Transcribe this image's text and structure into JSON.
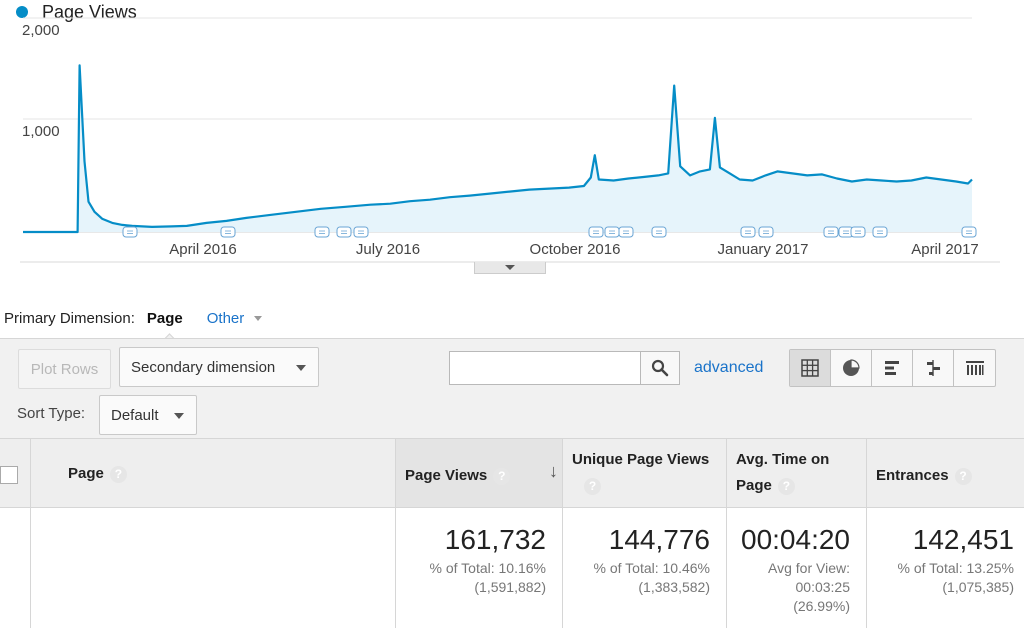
{
  "chart_data": {
    "type": "area",
    "legend": "Page Views",
    "series": [
      {
        "name": "Page Views",
        "color": "#058dc7",
        "points": [
          [
            0,
            0
          ],
          [
            55,
            0
          ],
          [
            57,
            1650
          ],
          [
            62,
            700
          ],
          [
            66,
            300
          ],
          [
            72,
            200
          ],
          [
            80,
            130
          ],
          [
            90,
            90
          ],
          [
            100,
            70
          ],
          [
            110,
            60
          ],
          [
            120,
            55
          ],
          [
            130,
            50
          ],
          [
            150,
            55
          ],
          [
            165,
            60
          ],
          [
            185,
            90
          ],
          [
            205,
            110
          ],
          [
            225,
            140
          ],
          [
            250,
            170
          ],
          [
            275,
            200
          ],
          [
            300,
            230
          ],
          [
            325,
            250
          ],
          [
            350,
            270
          ],
          [
            370,
            280
          ],
          [
            390,
            305
          ],
          [
            410,
            320
          ],
          [
            430,
            345
          ],
          [
            450,
            360
          ],
          [
            470,
            380
          ],
          [
            490,
            400
          ],
          [
            510,
            420
          ],
          [
            530,
            430
          ],
          [
            550,
            440
          ],
          [
            565,
            455
          ],
          [
            572,
            540
          ],
          [
            576,
            760
          ],
          [
            580,
            520
          ],
          [
            595,
            510
          ],
          [
            610,
            530
          ],
          [
            625,
            545
          ],
          [
            640,
            560
          ],
          [
            650,
            580
          ],
          [
            656,
            1450
          ],
          [
            662,
            650
          ],
          [
            672,
            560
          ],
          [
            682,
            600
          ],
          [
            692,
            620
          ],
          [
            697,
            1130
          ],
          [
            702,
            640
          ],
          [
            712,
            580
          ],
          [
            722,
            520
          ],
          [
            735,
            510
          ],
          [
            748,
            560
          ],
          [
            760,
            600
          ],
          [
            775,
            580
          ],
          [
            790,
            560
          ],
          [
            805,
            570
          ],
          [
            820,
            530
          ],
          [
            835,
            500
          ],
          [
            850,
            520
          ],
          [
            865,
            510
          ],
          [
            880,
            500
          ],
          [
            895,
            510
          ],
          [
            910,
            540
          ],
          [
            925,
            520
          ],
          [
            940,
            500
          ],
          [
            952,
            480
          ],
          [
            956,
            520
          ]
        ]
      }
    ],
    "x_range": [
      "2016-01",
      "2017-04"
    ],
    "ylim": [
      0,
      2000
    ],
    "yticks": [
      "2,000",
      "1,000"
    ],
    "xticks": [
      "April 2016",
      "July 2016",
      "October 2016",
      "January 2017",
      "April 2017"
    ],
    "grid": true
  },
  "primary_dimension": {
    "label": "Primary Dimension:",
    "active": "Page",
    "other": "Other"
  },
  "toolbar": {
    "plot_rows": "Plot Rows",
    "secondary_dimension": "Secondary dimension",
    "sort_type_label": "Sort Type:",
    "sort_type_value": "Default",
    "search_value": "",
    "advanced": "advanced"
  },
  "table": {
    "headers": {
      "page": "Page",
      "page_views": "Page Views",
      "unique_page_views": "Unique Page Views",
      "avg_time_line1": "Avg. Time on",
      "avg_time_line2": "Page",
      "entrances": "Entrances",
      "help": "?",
      "sort_arrow": "↓"
    },
    "totals": {
      "page_views": {
        "value": "161,732",
        "pct": "% of Total: 10.16%",
        "total": "(1,591,882)"
      },
      "unique_page_views": {
        "value": "144,776",
        "pct": "% of Total: 10.46%",
        "total": "(1,383,582)"
      },
      "avg_time": {
        "value": "00:04:20",
        "line1": "Avg for View:",
        "line2": "00:03:25",
        "line3": "(26.99%)"
      },
      "entrances": {
        "value": "142,451",
        "pct": "% of Total: 13.25%",
        "total": "(1,075,385)"
      }
    }
  }
}
